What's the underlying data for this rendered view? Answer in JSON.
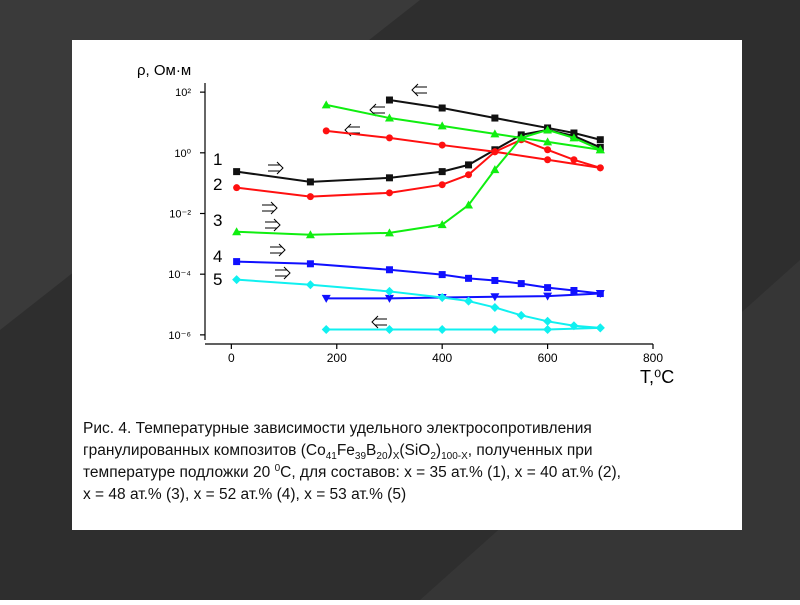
{
  "chart_data": {
    "type": "line",
    "ylabel": "ρ, Ом·м",
    "xlabel": "T,⁰C",
    "log_y": true,
    "xlim": [
      -50,
      800
    ],
    "xticks": [
      0,
      200,
      400,
      600,
      800
    ],
    "ylim": [
      5e-07,
      200
    ],
    "yticks": [
      {
        "value": 100,
        "label": "10²"
      },
      {
        "value": 1,
        "label": "10⁰"
      },
      {
        "value": 0.01,
        "label": "10⁻²"
      },
      {
        "value": 0.0001,
        "label": "10⁻⁴"
      },
      {
        "value": 1e-06,
        "label": "10⁻⁶"
      }
    ],
    "curve_labels": [
      "1",
      "2",
      "3",
      "4",
      "5"
    ],
    "series": [
      {
        "color": "#111111",
        "marker": "square",
        "x": [
          10,
          150,
          300,
          400,
          450,
          500,
          550,
          600,
          650,
          700
        ],
        "values": [
          0.24,
          0.11,
          0.15,
          0.24,
          0.4,
          1.26,
          3.9,
          5.7,
          3.6,
          1.5
        ]
      },
      {
        "color": "#111111",
        "marker": "square",
        "x": [
          300,
          400,
          500,
          600,
          650,
          700
        ],
        "values": [
          55,
          30,
          14,
          6.6,
          4.5,
          2.7
        ]
      },
      {
        "color": "#ff1010",
        "marker": "circle",
        "x": [
          10,
          150,
          300,
          400,
          450,
          500,
          550,
          600,
          650,
          700
        ],
        "values": [
          0.071,
          0.036,
          0.048,
          0.089,
          0.19,
          1.08,
          2.7,
          1.26,
          0.59,
          0.32
        ]
      },
      {
        "color": "#ff1010",
        "marker": "circle",
        "x": [
          180,
          300,
          400,
          500,
          600,
          700
        ],
        "values": [
          5.3,
          3.1,
          1.8,
          1.08,
          0.59,
          0.32
        ]
      },
      {
        "color": "#10ee10",
        "marker": "triangle",
        "x": [
          10,
          150,
          300,
          400,
          450,
          500,
          550,
          600,
          650,
          700
        ],
        "values": [
          0.0025,
          0.002,
          0.0023,
          0.0043,
          0.019,
          0.28,
          3.1,
          5.7,
          3.1,
          1.26
        ]
      },
      {
        "color": "#10ee10",
        "marker": "triangle",
        "x": [
          180,
          300,
          400,
          500,
          600,
          700
        ],
        "values": [
          38,
          14,
          7.7,
          4.2,
          2.3,
          1.26
        ]
      },
      {
        "color": "#1010ff",
        "marker": "square",
        "x": [
          10,
          150,
          300,
          400,
          450,
          500,
          550,
          600,
          650,
          700
        ],
        "values": [
          0.00026,
          0.00022,
          0.00014,
          9.7e-05,
          7.3e-05,
          6.2e-05,
          4.9e-05,
          3.6e-05,
          2.9e-05,
          2.3e-05
        ]
      },
      {
        "color": "#1010ff",
        "marker": "triangle-down",
        "x": [
          180,
          300,
          400,
          500,
          600,
          700
        ],
        "values": [
          1.6e-05,
          1.6e-05,
          1.7e-05,
          1.8e-05,
          1.9e-05,
          2.3e-05
        ]
      },
      {
        "color": "#10f0f0",
        "marker": "diamond",
        "x": [
          10,
          150,
          300,
          400,
          450,
          500,
          550,
          600,
          650,
          700
        ],
        "values": [
          6.6e-05,
          4.5e-05,
          2.7e-05,
          1.7e-05,
          1.3e-05,
          8e-06,
          4.4e-06,
          2.8e-06,
          2e-06,
          1.7e-06
        ]
      },
      {
        "color": "#10f0f0",
        "marker": "diamond",
        "x": [
          180,
          300,
          400,
          500,
          600,
          700
        ],
        "values": [
          1.5e-06,
          1.5e-06,
          1.5e-06,
          1.5e-06,
          1.5e-06,
          1.7e-06
        ]
      }
    ]
  },
  "caption": [
    [
      "Рис. 4. Температурные зависимости удельного электросопротивления"
    ],
    [
      "гранулированных композитов  (Co",
      "41",
      "Fe",
      "39",
      "B",
      "20",
      ")",
      "X",
      "(SiO",
      "2",
      ")",
      "100-X",
      ", полученных при"
    ],
    [
      "температуре подложки 20 ",
      "0",
      "С, для составов:  х = 35 ат.% (1), х = 40 ат.% (2),"
    ],
    [
      "х = 48 ат.% (3), х = 52 ат.% (4), х = 53 ат.% (5)"
    ]
  ]
}
